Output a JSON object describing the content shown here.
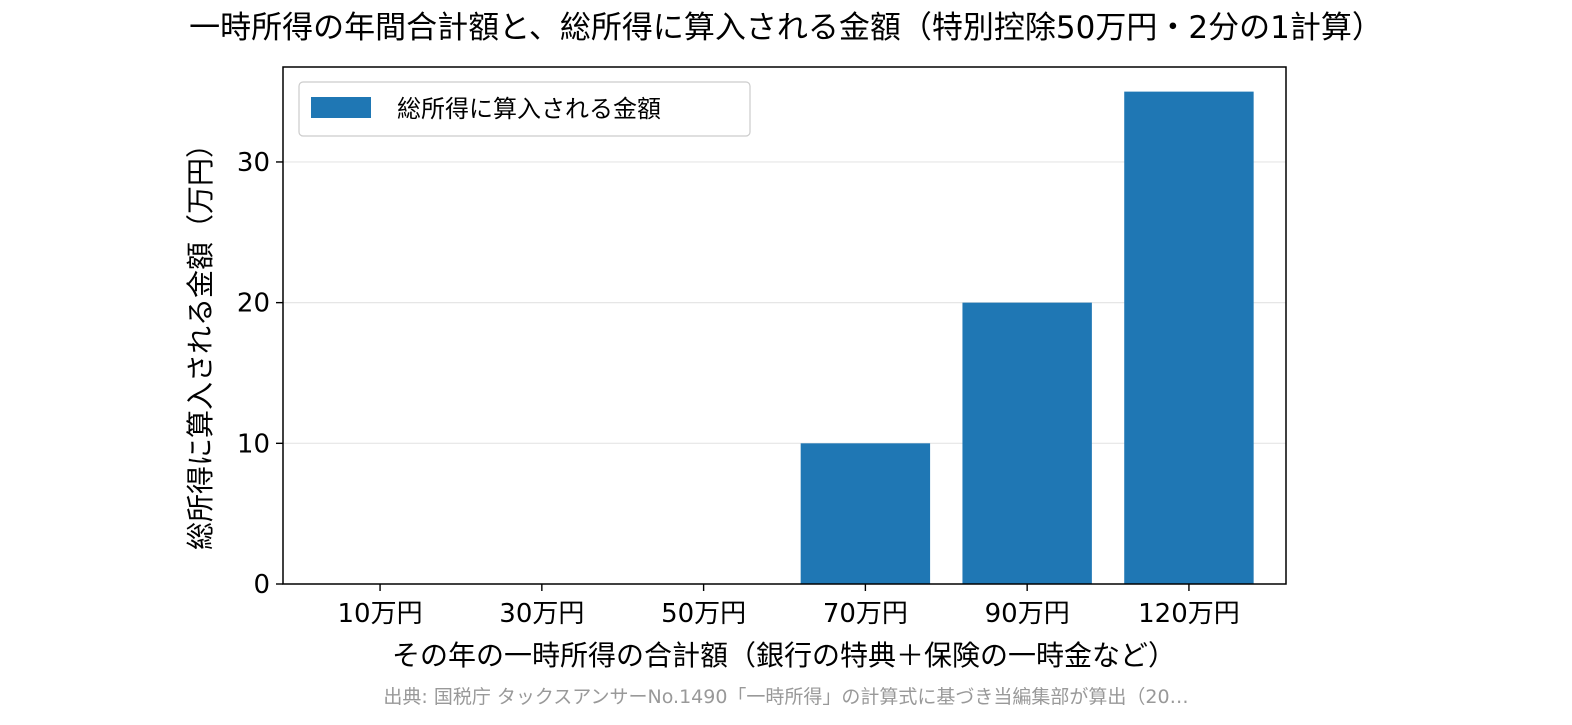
{
  "chart_data": {
    "type": "bar",
    "title": "一時所得の年間合計額と、総所得に算入される金額（特別控除50万円・2分の1計算）",
    "xlabel": "その年の一時所得の合計額（銀行の特典＋保険の一時金など）",
    "ylabel": "総所得に算入される金額（万円）",
    "categories": [
      "10万円",
      "30万円",
      "50万円",
      "70万円",
      "90万円",
      "120万円"
    ],
    "series": [
      {
        "name": "総所得に算入される金額",
        "values": [
          0,
          0,
          0,
          10,
          20,
          35
        ],
        "color": "#1f77b4"
      }
    ],
    "ylim": [
      0,
      36.75
    ],
    "yticks": [
      0,
      10,
      20,
      30
    ],
    "grid": "horizontal",
    "legend": "top-left"
  },
  "source_note": "出典: 国税庁 タックスアンサーNo.1490「一時所得」の計算式に基づき当編集部が算出（20…"
}
